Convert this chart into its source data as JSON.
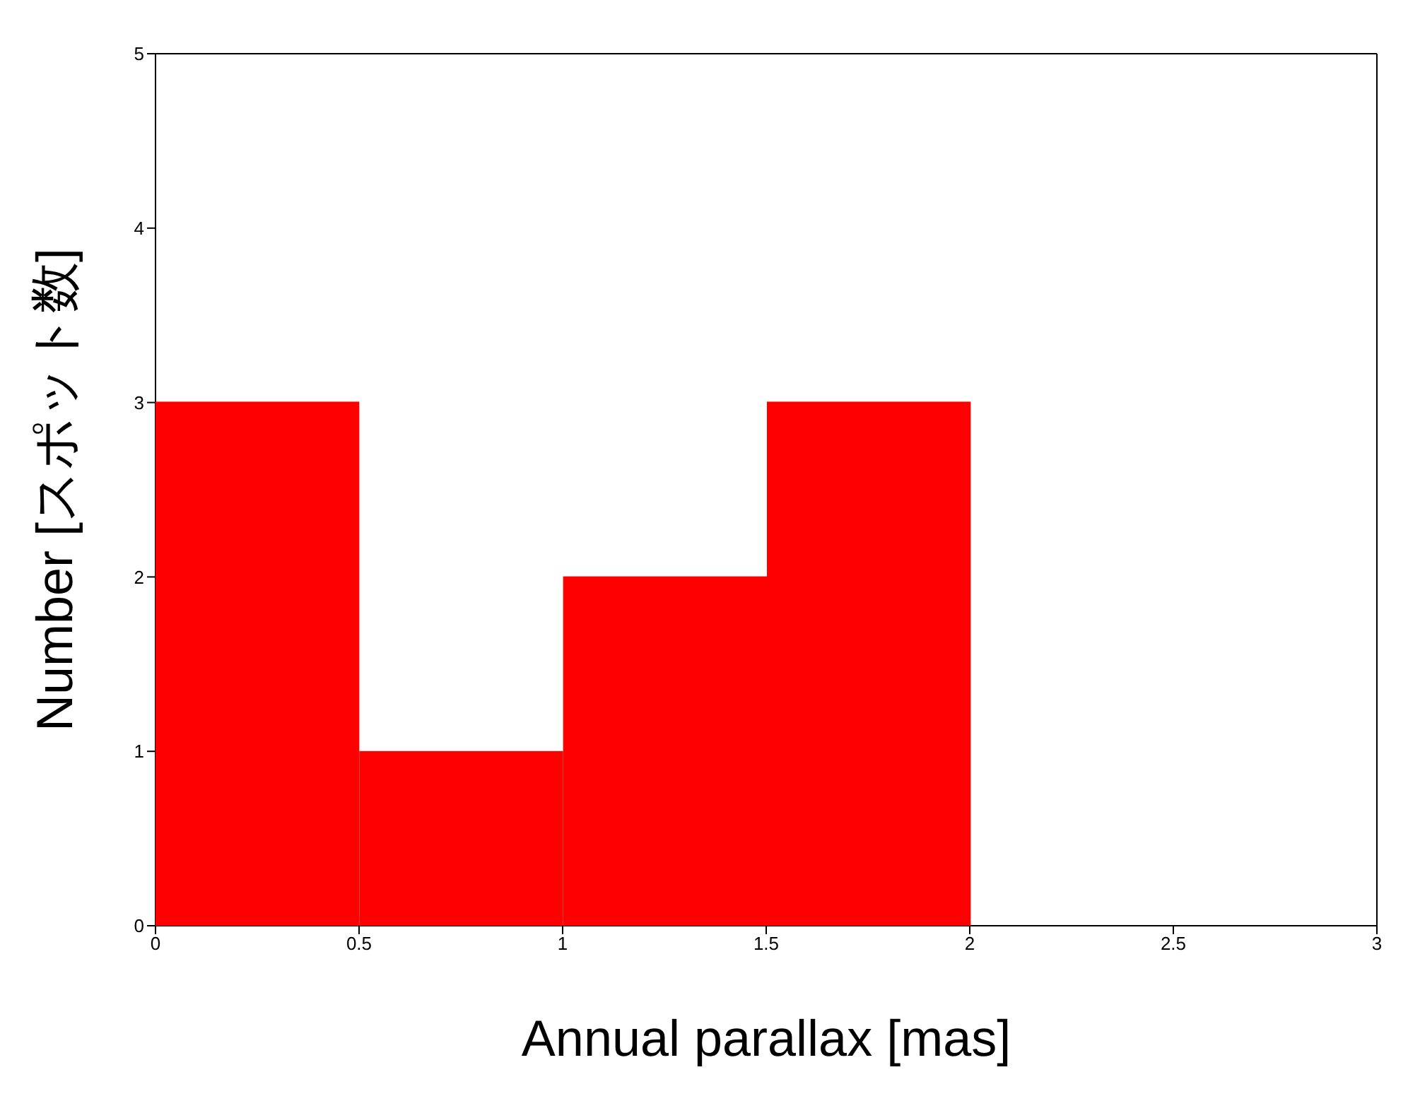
{
  "chart_data": {
    "type": "histogram",
    "xlabel": "Annual parallax [mas]",
    "ylabel": "Number [スポット数]",
    "bins": [
      0,
      0.5,
      1,
      1.5,
      2
    ],
    "values": [
      3,
      1,
      2,
      3
    ],
    "color": "#ff0000",
    "xlim": [
      0,
      3
    ],
    "xticks": [
      0,
      0.5,
      1,
      1.5,
      2,
      2.5,
      3
    ],
    "ylim": [
      0,
      5
    ],
    "yticks": [
      0,
      1,
      2,
      3,
      4,
      5
    ],
    "grid": false,
    "legend": false
  }
}
